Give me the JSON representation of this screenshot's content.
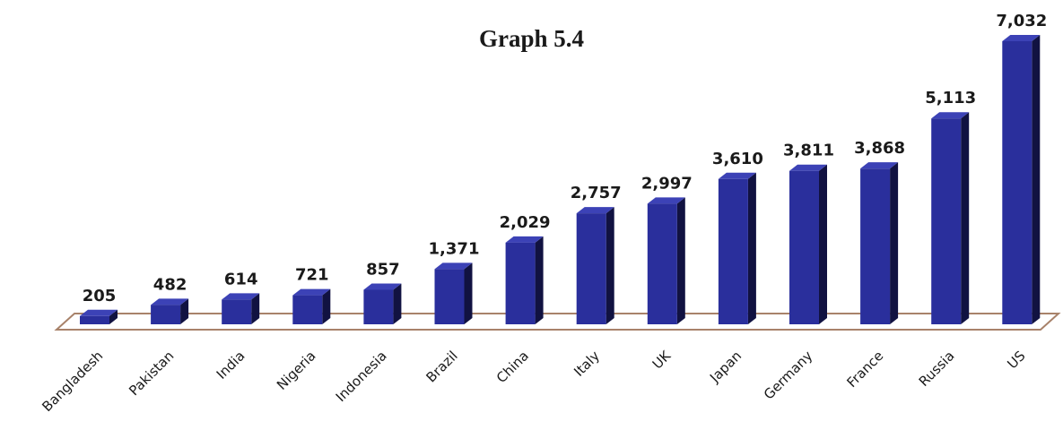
{
  "chart_data": {
    "type": "bar",
    "title": "Graph 5.4",
    "categories": [
      "Bangladesh",
      "Pakistan",
      "India",
      "Nigeria",
      "Indonesia",
      "Brazil",
      "China",
      "Italy",
      "UK",
      "Japan",
      "Germany",
      "France",
      "Russia",
      "US"
    ],
    "values": [
      205,
      482,
      614,
      721,
      857,
      1371,
      2029,
      2757,
      2997,
      3610,
      3811,
      3868,
      5113,
      7032
    ],
    "value_labels": [
      "205",
      "482",
      "614",
      "721",
      "857",
      "1,371",
      "2,029",
      "2,757",
      "2,997",
      "3,610",
      "3,811",
      "3,868",
      "5,113",
      "7,032"
    ],
    "xlabel": "",
    "ylabel": "",
    "ylim": [
      0,
      7032
    ],
    "grid": false,
    "style": "3d-bar",
    "colors": {
      "bar_front": "#2a2f9c",
      "bar_side": "#111241",
      "bar_top": "#3c42b6",
      "floor_stroke": "#a8826a"
    }
  }
}
